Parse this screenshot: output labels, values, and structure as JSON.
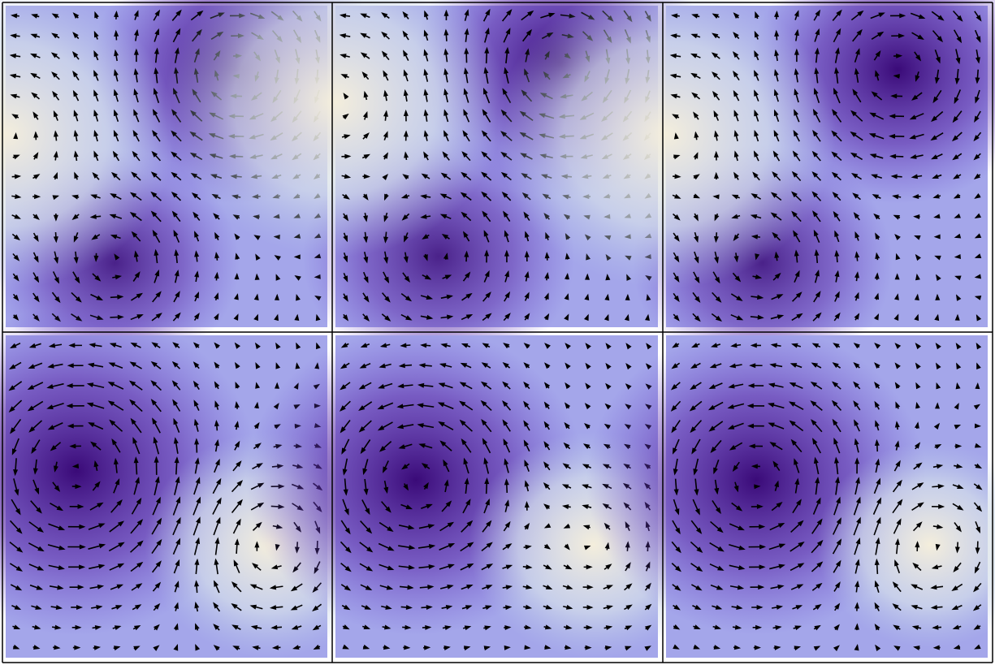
{
  "chart_data": {
    "type": "vector-field",
    "panels": [
      {
        "vortices": [
          {
            "x": 0.72,
            "y": 0.2,
            "s": -1,
            "r": 0.26,
            "tone": 1
          },
          {
            "x": 0.34,
            "y": 0.8,
            "s": 1,
            "r": 0.22,
            "tone": 0.85
          },
          {
            "x": 0.0,
            "y": 0.4,
            "s": 0.5,
            "r": 0.3,
            "tone": -1
          }
        ]
      },
      {
        "vortices": [
          {
            "x": 0.7,
            "y": 0.18,
            "s": -1,
            "r": 0.26,
            "tone": 1
          },
          {
            "x": 0.32,
            "y": 0.78,
            "s": 0.8,
            "r": 0.24,
            "tone": 0.85
          },
          {
            "x": 0.0,
            "y": 0.3,
            "s": 0.5,
            "r": 0.3,
            "tone": -1
          }
        ]
      },
      {
        "vortices": [
          {
            "x": 0.72,
            "y": 0.2,
            "s": -1,
            "r": 0.26,
            "tone": 1
          },
          {
            "x": 0.3,
            "y": 0.8,
            "s": 0.9,
            "r": 0.23,
            "tone": 0.85
          },
          {
            "x": 0.0,
            "y": 0.4,
            "s": 0.5,
            "r": 0.3,
            "tone": -1
          }
        ]
      },
      {
        "vortices": [
          {
            "x": 0.22,
            "y": 0.42,
            "s": 1,
            "r": 0.32,
            "tone": 1
          },
          {
            "x": 0.82,
            "y": 0.65,
            "s": -1,
            "r": 0.22,
            "tone": -1
          }
        ]
      },
      {
        "vortices": [
          {
            "x": 0.25,
            "y": 0.45,
            "s": 1,
            "r": 0.3,
            "tone": 1
          },
          {
            "x": 0.8,
            "y": 0.65,
            "s": 0.6,
            "r": 0.22,
            "tone": -1
          }
        ]
      },
      {
        "vortices": [
          {
            "x": 0.28,
            "y": 0.45,
            "s": 1,
            "r": 0.3,
            "tone": 1
          },
          {
            "x": 0.82,
            "y": 0.65,
            "s": -1,
            "r": 0.2,
            "tone": -1
          }
        ]
      }
    ]
  }
}
